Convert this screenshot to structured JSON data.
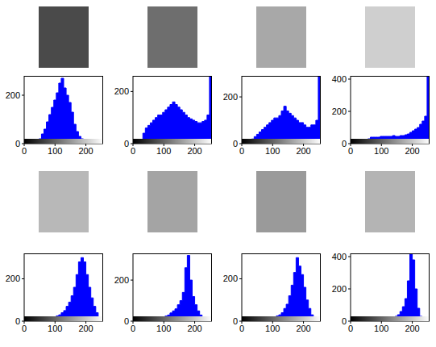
{
  "chart_data": [
    {
      "type": "histogram",
      "color": "#0000ff",
      "bins": [
        0,
        8,
        16,
        24,
        32,
        40,
        48,
        56,
        64,
        72,
        80,
        88,
        96,
        104,
        112,
        120,
        128,
        136,
        144,
        152,
        160,
        168,
        176,
        184,
        192,
        200,
        208,
        216,
        224,
        232,
        240,
        248,
        256
      ],
      "counts": [
        0,
        0,
        2,
        3,
        5,
        8,
        20,
        40,
        60,
        90,
        120,
        150,
        180,
        210,
        250,
        270,
        230,
        200,
        170,
        130,
        80,
        50,
        30,
        20,
        15,
        12,
        10,
        10,
        8,
        8,
        8,
        10
      ],
      "xlim": [
        0,
        256
      ],
      "xticks": [
        0,
        100,
        200
      ],
      "ylim": [
        0,
        280
      ],
      "yticks": [
        0,
        200
      ],
      "grid": false
    },
    {
      "type": "histogram",
      "color": "#0000ff",
      "bins": [
        0,
        8,
        16,
        24,
        32,
        40,
        48,
        56,
        64,
        72,
        80,
        88,
        96,
        104,
        112,
        120,
        128,
        136,
        144,
        152,
        160,
        168,
        176,
        184,
        192,
        200,
        208,
        216,
        224,
        232,
        240,
        248,
        256
      ],
      "counts": [
        0,
        0,
        5,
        15,
        40,
        60,
        70,
        80,
        90,
        100,
        110,
        110,
        120,
        130,
        140,
        150,
        160,
        150,
        140,
        130,
        120,
        110,
        100,
        95,
        90,
        85,
        80,
        80,
        85,
        90,
        110,
        260
      ],
      "xlim": [
        0,
        256
      ],
      "xticks": [
        0,
        100,
        200
      ],
      "ylim": [
        0,
        260
      ],
      "yticks": [
        0,
        200
      ],
      "grid": false
    },
    {
      "type": "histogram",
      "color": "#0000ff",
      "bins": [
        0,
        8,
        16,
        24,
        32,
        40,
        48,
        56,
        64,
        72,
        80,
        88,
        96,
        104,
        112,
        120,
        128,
        136,
        144,
        152,
        160,
        168,
        176,
        184,
        192,
        200,
        208,
        216,
        224,
        232,
        240,
        248,
        256
      ],
      "counts": [
        0,
        0,
        2,
        10,
        20,
        30,
        40,
        50,
        60,
        70,
        80,
        90,
        100,
        110,
        110,
        120,
        140,
        160,
        140,
        130,
        120,
        110,
        100,
        90,
        90,
        80,
        70,
        70,
        80,
        80,
        100,
        290
      ],
      "xlim": [
        0,
        256
      ],
      "xticks": [
        0,
        100,
        200
      ],
      "ylim": [
        0,
        290
      ],
      "yticks": [
        0,
        200
      ],
      "grid": false
    },
    {
      "type": "histogram",
      "color": "#0000ff",
      "bins": [
        0,
        8,
        16,
        24,
        32,
        40,
        48,
        56,
        64,
        72,
        80,
        88,
        96,
        104,
        112,
        120,
        128,
        136,
        144,
        152,
        160,
        168,
        176,
        184,
        192,
        200,
        208,
        216,
        224,
        232,
        240,
        248,
        256
      ],
      "counts": [
        0,
        0,
        0,
        0,
        2,
        5,
        15,
        30,
        40,
        40,
        40,
        40,
        45,
        45,
        45,
        45,
        45,
        50,
        45,
        45,
        50,
        50,
        55,
        60,
        70,
        80,
        90,
        100,
        120,
        140,
        170,
        420
      ],
      "xlim": [
        0,
        256
      ],
      "xticks": [
        0,
        100,
        200
      ],
      "ylim": [
        0,
        420
      ],
      "yticks": [
        0,
        200,
        400
      ],
      "grid": false
    },
    {
      "type": "histogram",
      "color": "#0000ff",
      "bins": [
        0,
        8,
        16,
        24,
        32,
        40,
        48,
        56,
        64,
        72,
        80,
        88,
        96,
        104,
        112,
        120,
        128,
        136,
        144,
        152,
        160,
        168,
        176,
        184,
        192,
        200,
        208,
        216,
        224,
        232,
        240,
        248,
        256
      ],
      "counts": [
        2,
        3,
        5,
        5,
        5,
        8,
        8,
        10,
        10,
        12,
        15,
        18,
        20,
        25,
        30,
        40,
        50,
        70,
        90,
        120,
        160,
        220,
        280,
        300,
        280,
        220,
        160,
        110,
        70,
        40,
        20,
        10
      ],
      "xlim": [
        0,
        256
      ],
      "xticks": [
        0,
        100,
        200
      ],
      "ylim": [
        0,
        320
      ],
      "yticks": [
        0,
        200
      ],
      "grid": false
    },
    {
      "type": "histogram",
      "color": "#0000ff",
      "bins": [
        0,
        8,
        16,
        24,
        32,
        40,
        48,
        56,
        64,
        72,
        80,
        88,
        96,
        104,
        112,
        120,
        128,
        136,
        144,
        152,
        160,
        168,
        176,
        184,
        192,
        200,
        208,
        216,
        224,
        232,
        240,
        248,
        256
      ],
      "counts": [
        2,
        3,
        5,
        5,
        5,
        6,
        8,
        8,
        10,
        10,
        12,
        15,
        20,
        25,
        30,
        40,
        50,
        60,
        80,
        100,
        140,
        260,
        320,
        200,
        120,
        80,
        50,
        30,
        20,
        10,
        5,
        3
      ],
      "xlim": [
        0,
        256
      ],
      "xticks": [
        0,
        100,
        200
      ],
      "ylim": [
        0,
        330
      ],
      "yticks": [
        0,
        200
      ],
      "grid": false
    },
    {
      "type": "histogram",
      "color": "#0000ff",
      "bins": [
        0,
        8,
        16,
        24,
        32,
        40,
        48,
        56,
        64,
        72,
        80,
        88,
        96,
        104,
        112,
        120,
        128,
        136,
        144,
        152,
        160,
        168,
        176,
        184,
        192,
        200,
        208,
        216,
        224,
        232,
        240,
        248,
        256
      ],
      "counts": [
        2,
        2,
        3,
        5,
        5,
        5,
        6,
        8,
        8,
        10,
        12,
        15,
        18,
        20,
        25,
        30,
        40,
        60,
        80,
        120,
        170,
        230,
        300,
        260,
        220,
        160,
        100,
        60,
        30,
        15,
        8,
        5
      ],
      "xlim": [
        0,
        256
      ],
      "xticks": [
        0,
        100,
        200
      ],
      "ylim": [
        0,
        320
      ],
      "yticks": [
        0,
        200
      ],
      "grid": false
    },
    {
      "type": "histogram",
      "color": "#0000ff",
      "bins": [
        0,
        8,
        16,
        24,
        32,
        40,
        48,
        56,
        64,
        72,
        80,
        88,
        96,
        104,
        112,
        120,
        128,
        136,
        144,
        152,
        160,
        168,
        176,
        184,
        192,
        200,
        208,
        216,
        224,
        232,
        240,
        248,
        256
      ],
      "counts": [
        2,
        2,
        2,
        3,
        3,
        4,
        4,
        5,
        5,
        6,
        8,
        8,
        10,
        12,
        15,
        18,
        20,
        25,
        30,
        40,
        60,
        90,
        140,
        250,
        420,
        380,
        200,
        80,
        30,
        10,
        5,
        3
      ],
      "xlim": [
        0,
        256
      ],
      "xticks": [
        0,
        100,
        200
      ],
      "ylim": [
        0,
        420
      ],
      "yticks": [
        0,
        200,
        400
      ],
      "grid": false
    }
  ]
}
